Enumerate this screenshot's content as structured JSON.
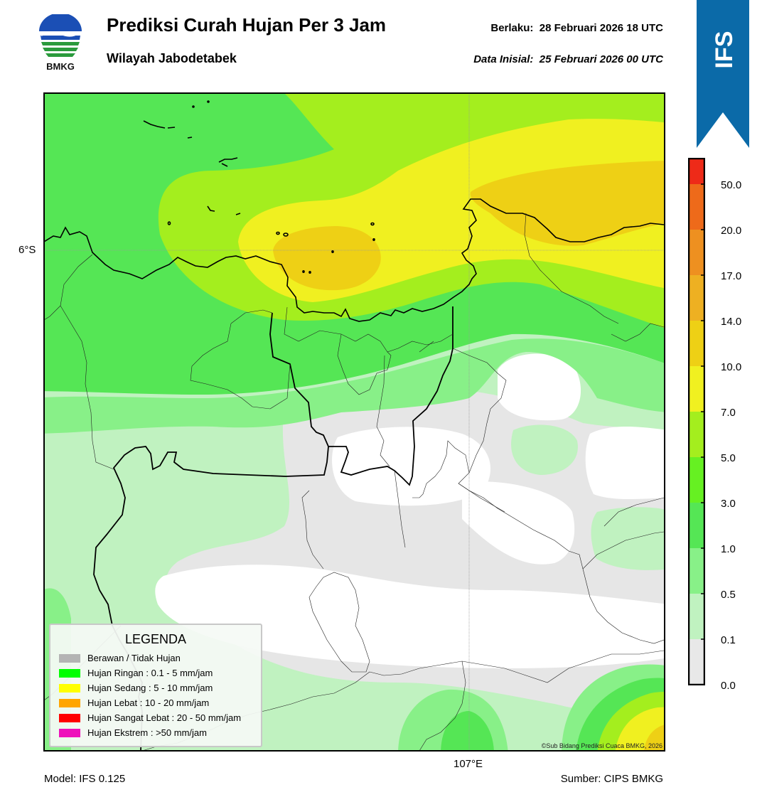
{
  "header": {
    "logo_text": "BMKG",
    "title": "Prediksi Curah Hujan Per 3 Jam",
    "subtitle": "Wilayah Jabodetabek",
    "valid_label": "Berlaku:",
    "valid_value": "28 Februari 2026 18 UTC",
    "init_label": "Data Inisial:",
    "init_value": "25 Februari 2026 00 UTC",
    "banner": "IFS"
  },
  "map": {
    "lat_label": "6°S",
    "lon_label": "107°E",
    "credit": "©Sub Bidang Prediksi Cuaca BMKG, 2026"
  },
  "legend": {
    "title": "LEGENDA",
    "items": [
      {
        "label": "Berawan / Tidak Hujan",
        "color": "#b4b4b4"
      },
      {
        "label": "Hujan Ringan : 0.1 - 5 mm/jam",
        "color": "#00ff00"
      },
      {
        "label": "Hujan Sedang : 5 - 10 mm/jam",
        "color": "#ffff00"
      },
      {
        "label": "Hujan Lebat : 10 - 20 mm/jam",
        "color": "#ffa500"
      },
      {
        "label": "Hujan Sangat Lebat : 20 - 50 mm/jam",
        "color": "#ff0000"
      },
      {
        "label": "Hujan Ekstrem : >50 mm/jam",
        "color": "#ee11bb"
      }
    ]
  },
  "colorbar": {
    "ticks": [
      "0.0",
      "0.1",
      "0.5",
      "1.0",
      "3.0",
      "5.0",
      "7.0",
      "10.0",
      "14.0",
      "17.0",
      "20.0",
      "50.0"
    ],
    "colors": [
      "#e8e8e8",
      "#c0f2c0",
      "#88f088",
      "#55e655",
      "#66f022",
      "#a4ee1e",
      "#f0f020",
      "#eed015",
      "#eeb022",
      "#ee9020",
      "#ee6a1a",
      "#ee2a18",
      "#ee18c0"
    ]
  },
  "footer": {
    "model": "Model: IFS 0.125",
    "source": "Sumber: CIPS BMKG"
  }
}
